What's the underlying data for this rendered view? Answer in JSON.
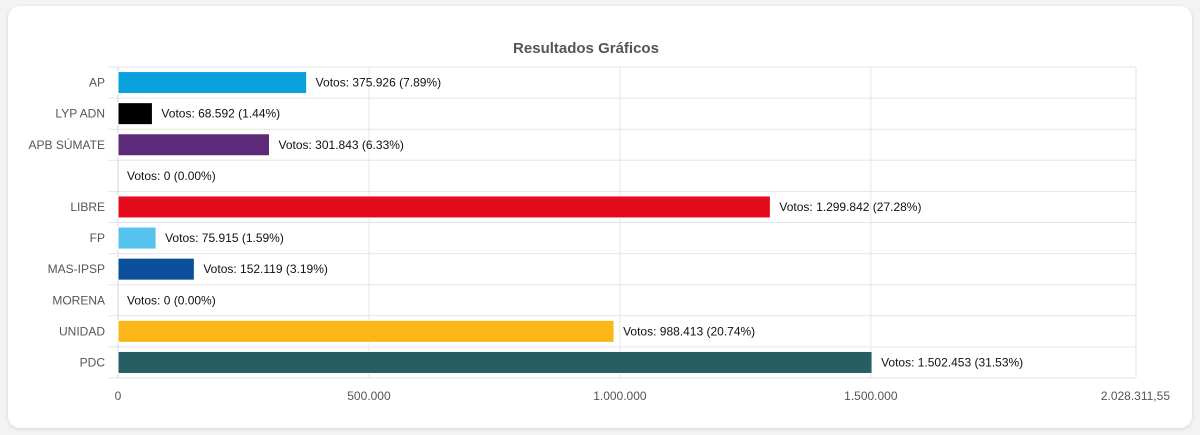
{
  "chart_data": {
    "type": "bar",
    "orientation": "horizontal",
    "title": "Resultados Gráficos",
    "xlabel": "",
    "ylabel": "",
    "categories": [
      "AP",
      "LYP ADN",
      "APB SÚMATE",
      "",
      "LIBRE",
      "FP",
      "MAS-IPSP",
      "MORENA",
      "UNIDAD",
      "PDC"
    ],
    "values": [
      375926,
      68592,
      301843,
      0,
      1299842,
      75915,
      152119,
      0,
      988413,
      1502453
    ],
    "data_labels": [
      "Votos: 375.926 (7.89%)",
      "Votos: 68.592 (1.44%)",
      "Votos: 301.843 (6.33%)",
      "Votos: 0 (0.00%)",
      "Votos: 1.299.842 (27.28%)",
      "Votos: 75.915 (1.59%)",
      "Votos: 152.119 (3.19%)",
      "Votos: 0 (0.00%)",
      "Votos: 988.413 (20.74%)",
      "Votos: 1.502.453 (31.53%)"
    ],
    "colors": [
      "#0aa0dc",
      "#000000",
      "#5c2a78",
      "#cccccc",
      "#e30b1c",
      "#55c3ee",
      "#0b4f9c",
      "#8a1c2b",
      "#fbb617",
      "#265f63"
    ],
    "xlim": [
      0,
      2028311.55
    ],
    "xticks": [
      0,
      500000,
      1000000,
      1500000,
      2028311.55
    ],
    "xtick_labels": [
      "0",
      "500.000",
      "1.000.000",
      "1.500.000",
      "2.028.311,55"
    ],
    "grid": true,
    "legend": "none"
  }
}
